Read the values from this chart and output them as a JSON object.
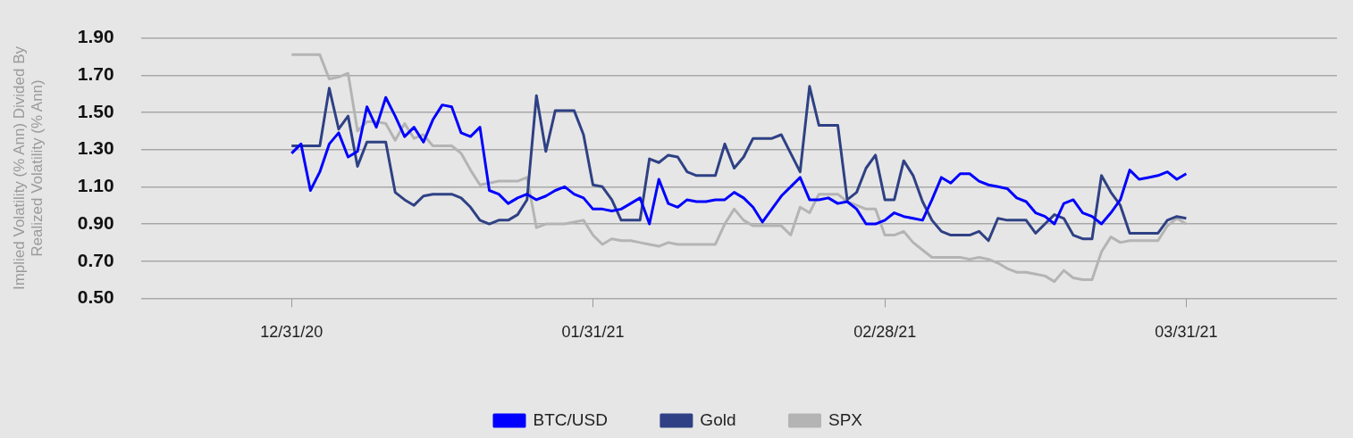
{
  "chart_data": {
    "type": "line",
    "ylabel": "Implied Volatility (% Ann) Divided By Realized Volatility (% Ann)",
    "categories": [
      null,
      null,
      null,
      null,
      null,
      null,
      null,
      null,
      null,
      null,
      null,
      null,
      null,
      null,
      null,
      null,
      "12/31/20",
      null,
      null,
      null,
      null,
      null,
      null,
      null,
      null,
      null,
      null,
      null,
      null,
      null,
      null,
      null,
      null,
      null,
      null,
      null,
      null,
      null,
      null,
      null,
      null,
      null,
      null,
      null,
      null,
      null,
      null,
      null,
      "01/31/21",
      null,
      null,
      null,
      null,
      null,
      null,
      null,
      null,
      null,
      null,
      null,
      null,
      null,
      null,
      null,
      null,
      null,
      null,
      null,
      null,
      null,
      null,
      null,
      null,
      null,
      null,
      null,
      null,
      null,
      null,
      "02/28/21",
      null,
      null,
      null,
      null,
      null,
      null,
      null,
      null,
      null,
      null,
      null,
      null,
      null,
      null,
      null,
      null,
      null,
      null,
      null,
      null,
      null,
      null,
      null,
      null,
      null,
      null,
      null,
      null,
      null,
      null,
      null,
      "03/31/21",
      null,
      null,
      null,
      null,
      null,
      null,
      null,
      null,
      null,
      null,
      null,
      null,
      null,
      null,
      null,
      null
    ],
    "series": [
      {
        "name": "BTC/USD",
        "color": "#0000ff",
        "values": [
          null,
          null,
          null,
          null,
          null,
          null,
          null,
          null,
          null,
          null,
          null,
          null,
          null,
          null,
          null,
          null,
          1.28,
          1.33,
          1.08,
          1.18,
          1.33,
          1.39,
          1.26,
          1.29,
          1.53,
          1.42,
          1.58,
          1.48,
          1.37,
          1.42,
          1.34,
          1.46,
          1.54,
          1.53,
          1.39,
          1.37,
          1.42,
          1.08,
          1.06,
          1.01,
          1.04,
          1.06,
          1.03,
          1.05,
          1.08,
          1.1,
          1.06,
          1.04,
          0.98,
          0.98,
          0.97,
          0.98,
          1.01,
          1.04,
          0.9,
          1.14,
          1.01,
          0.99,
          1.03,
          1.02,
          1.02,
          1.03,
          1.03,
          1.07,
          1.04,
          0.99,
          0.91,
          0.98,
          1.05,
          1.1,
          1.15,
          1.03,
          1.03,
          1.04,
          1.01,
          1.02,
          0.98,
          0.9,
          0.9,
          0.92,
          0.96,
          0.94,
          0.93,
          0.92,
          1.03,
          1.15,
          1.12,
          1.17,
          1.17,
          1.13,
          1.11,
          1.1,
          1.09,
          1.04,
          1.02,
          0.96,
          0.94,
          0.9,
          1.01,
          1.03,
          0.96,
          0.94,
          0.9,
          0.96,
          1.03,
          1.19,
          1.14,
          1.15,
          1.16,
          1.18,
          1.14,
          1.17,
          null,
          null,
          null,
          null,
          null,
          null,
          null,
          null,
          null,
          null,
          null,
          null,
          null,
          null,
          null,
          null
        ]
      },
      {
        "name": "Gold",
        "color": "#2f4184",
        "values": [
          null,
          null,
          null,
          null,
          null,
          null,
          null,
          null,
          null,
          null,
          null,
          null,
          null,
          null,
          null,
          null,
          1.32,
          1.32,
          1.32,
          1.32,
          1.63,
          1.41,
          1.48,
          1.21,
          1.34,
          1.34,
          1.34,
          1.07,
          1.03,
          1.0,
          1.05,
          1.06,
          1.06,
          1.06,
          1.04,
          0.99,
          0.92,
          0.9,
          0.92,
          0.92,
          0.95,
          1.03,
          1.59,
          1.29,
          1.51,
          1.51,
          1.51,
          1.38,
          1.11,
          1.1,
          1.03,
          0.92,
          0.92,
          0.92,
          1.25,
          1.23,
          1.27,
          1.26,
          1.18,
          1.16,
          1.16,
          1.16,
          1.33,
          1.2,
          1.26,
          1.36,
          1.36,
          1.36,
          1.38,
          1.28,
          1.18,
          1.64,
          1.43,
          1.43,
          1.43,
          1.03,
          1.07,
          1.2,
          1.27,
          1.03,
          1.03,
          1.24,
          1.16,
          1.02,
          0.92,
          0.86,
          0.84,
          0.84,
          0.84,
          0.86,
          0.81,
          0.93,
          0.92,
          0.92,
          0.92,
          0.85,
          0.9,
          0.95,
          0.93,
          0.84,
          0.82,
          0.82,
          1.16,
          1.07,
          1.0,
          0.85,
          0.85,
          0.85,
          0.85,
          0.92,
          0.94,
          0.93,
          null,
          null,
          null,
          null,
          null,
          null,
          null,
          null,
          null,
          null,
          null,
          null,
          null,
          null,
          null,
          null
        ]
      },
      {
        "name": "SPX",
        "color": "#b4b4b4",
        "values": [
          null,
          null,
          null,
          null,
          null,
          null,
          null,
          null,
          null,
          null,
          null,
          null,
          null,
          null,
          null,
          null,
          1.81,
          1.81,
          1.81,
          1.81,
          1.68,
          1.69,
          1.71,
          1.4,
          1.45,
          1.45,
          1.44,
          1.35,
          1.44,
          1.36,
          1.38,
          1.32,
          1.32,
          1.32,
          1.28,
          1.19,
          1.11,
          1.12,
          1.13,
          1.13,
          1.13,
          1.15,
          0.88,
          0.9,
          0.9,
          0.9,
          0.91,
          0.92,
          0.84,
          0.79,
          0.82,
          0.81,
          0.81,
          0.8,
          0.79,
          0.78,
          0.8,
          0.79,
          0.79,
          0.79,
          0.79,
          0.79,
          0.9,
          0.98,
          0.92,
          0.89,
          0.89,
          0.89,
          0.89,
          0.84,
          0.99,
          0.96,
          1.06,
          1.06,
          1.06,
          1.02,
          1.0,
          0.98,
          0.98,
          0.84,
          0.84,
          0.86,
          0.8,
          0.76,
          0.72,
          0.72,
          0.72,
          0.72,
          0.71,
          0.72,
          0.71,
          0.69,
          0.66,
          0.64,
          0.64,
          0.63,
          0.62,
          0.59,
          0.65,
          0.61,
          0.6,
          0.6,
          0.75,
          0.83,
          0.8,
          0.81,
          0.81,
          0.81,
          0.81,
          0.89,
          0.93,
          0.9,
          null,
          null,
          null,
          null,
          null,
          null,
          null,
          null,
          null,
          null,
          null,
          null,
          null,
          null,
          null,
          null
        ]
      }
    ],
    "ylim": [
      0.5,
      1.9
    ],
    "yticks": [
      {
        "value": 0.5,
        "label": "0.50"
      },
      {
        "value": 0.7,
        "label": "0.70"
      },
      {
        "value": 0.9,
        "label": "0.90"
      },
      {
        "value": 1.1,
        "label": "1.10"
      },
      {
        "value": 1.3,
        "label": "1.30"
      },
      {
        "value": 1.5,
        "label": "1.50"
      },
      {
        "value": 1.7,
        "label": "1.70"
      },
      {
        "value": 1.9,
        "label": "1.90"
      }
    ],
    "grid": "y",
    "legend": "bottom",
    "marker": "none"
  }
}
